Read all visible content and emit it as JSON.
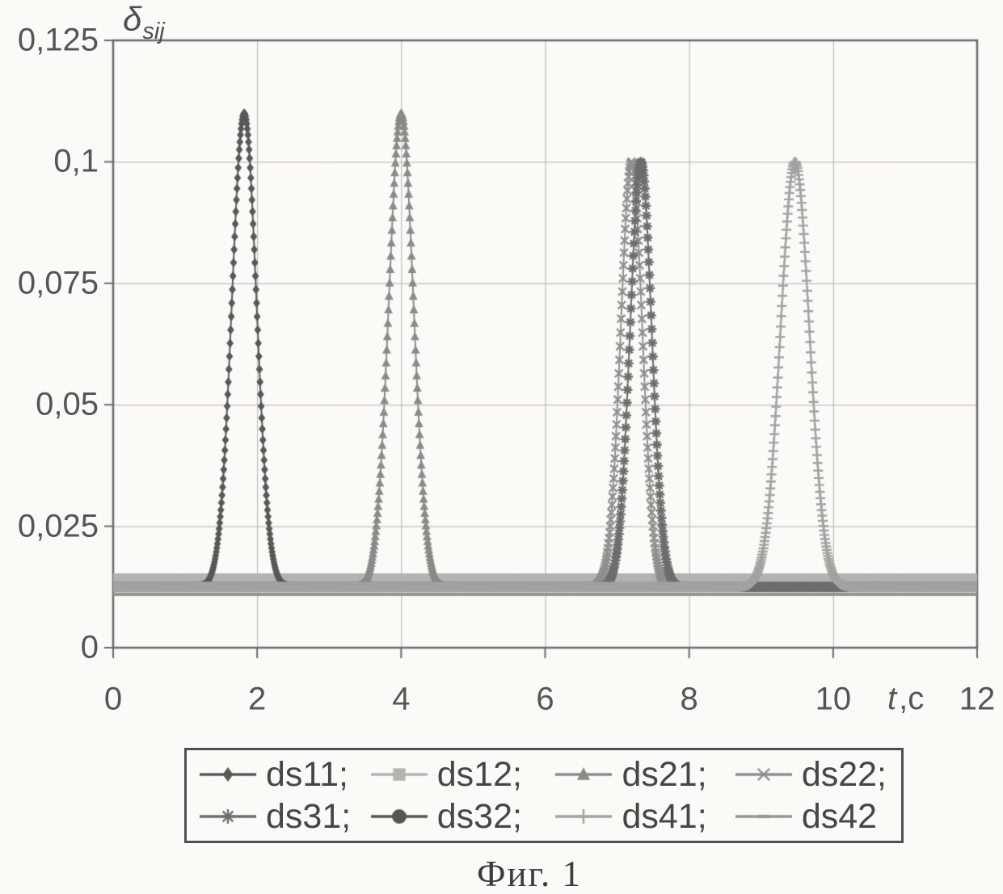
{
  "figure": {
    "caption": "Фиг. 1"
  },
  "axes": {
    "y_title_delta": "δ",
    "y_title_sub": "sij",
    "x_title_italic": "t",
    "x_title_rest": ",c"
  },
  "chart_data": {
    "type": "line",
    "title": "Фиг. 1",
    "ylabel": "δsij",
    "xlabel": "t,c",
    "xlim": [
      0,
      12
    ],
    "ylim": [
      0,
      0.125
    ],
    "grid": true,
    "legend_position": "bottom",
    "x_ticks": [
      {
        "t": 0,
        "label": "0"
      },
      {
        "t": 2,
        "label": "2"
      },
      {
        "t": 4,
        "label": "4"
      },
      {
        "t": 6,
        "label": "6"
      },
      {
        "t": 8,
        "label": "8"
      },
      {
        "t": 10,
        "label": "10"
      },
      {
        "t": 12,
        "label": "12"
      }
    ],
    "y_ticks": [
      {
        "v": 0,
        "label": "0"
      },
      {
        "v": 0.025,
        "label": "0,025"
      },
      {
        "v": 0.05,
        "label": "0,05"
      },
      {
        "v": 0.075,
        "label": "0,075"
      },
      {
        "v": 0.1,
        "label": "0,1"
      },
      {
        "v": 0.125,
        "label": "0,125"
      }
    ],
    "baseline": 0.0125,
    "series": [
      {
        "name": "ds11",
        "legend_label": "ds11;",
        "marker": "diamond",
        "color": "#585858",
        "kind": "peak",
        "center": 1.82,
        "peak": 0.11,
        "sigma": 0.17
      },
      {
        "name": "ds12",
        "legend_label": "ds12;",
        "marker": "square",
        "color": "#b3b3b3",
        "kind": "flat",
        "value": 0.0142
      },
      {
        "name": "ds21",
        "legend_label": "ds21;",
        "marker": "triangle",
        "color": "#8a8a8a",
        "kind": "peak",
        "center": 4.0,
        "peak": 0.11,
        "sigma": 0.17
      },
      {
        "name": "ds22",
        "legend_label": "ds22;",
        "marker": "x",
        "color": "#8f8f8f",
        "kind": "peak",
        "center": 7.2,
        "peak": 0.1,
        "sigma": 0.15
      },
      {
        "name": "ds31",
        "legend_label": "ds31;",
        "marker": "asterisk",
        "color": "#6d6d6d",
        "kind": "peak",
        "center": 7.33,
        "peak": 0.1,
        "sigma": 0.15
      },
      {
        "name": "ds32",
        "legend_label": "ds32;",
        "marker": "circle",
        "color": "#555555",
        "kind": "flat",
        "value": 0.0124
      },
      {
        "name": "ds41",
        "legend_label": "ds41;",
        "marker": "plus",
        "color": "#a2a2a2",
        "kind": "peak",
        "center": 9.47,
        "peak": 0.1,
        "sigma": 0.2
      },
      {
        "name": "ds42",
        "legend_label": "ds42",
        "marker": "dash",
        "color": "#949494",
        "kind": "flat",
        "value": 0.011
      }
    ],
    "colors": {
      "grid": "#b3b0aa",
      "frame": "#6a6a6a",
      "tick_text": "#555555"
    }
  }
}
